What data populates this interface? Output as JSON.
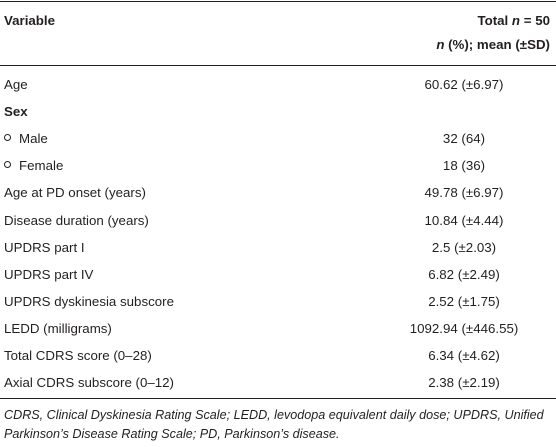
{
  "header": {
    "variable": "Variable",
    "total_line1": [
      "Total ",
      "n",
      " = 50"
    ],
    "total_line2": [
      "n",
      " (%); mean (±SD)"
    ]
  },
  "rows": [
    {
      "label": "Age",
      "value": "60.62 (±6.97)"
    },
    {
      "label": "Sex",
      "section": true
    },
    {
      "label": "Male",
      "value": "32 (64)",
      "sub": true
    },
    {
      "label": "Female",
      "value": "18 (36)",
      "sub": true
    },
    {
      "label": "Age at PD onset (years)",
      "value": "49.78 (±6.97)"
    },
    {
      "label": "Disease duration (years)",
      "value": "10.84 (±4.44)"
    },
    {
      "label": "UPDRS part I",
      "value": "2.5 (±2.03)"
    },
    {
      "label": "UPDRS part IV",
      "value": "6.82 (±2.49)"
    },
    {
      "label": "UPDRS dyskinesia subscore",
      "value": "2.52 (±1.75)"
    },
    {
      "label": "LEDD (milligrams)",
      "value": "1092.94 (±446.55)"
    },
    {
      "label": "Total CDRS score (0–28)",
      "value": "6.34 (±4.62)"
    },
    {
      "label": "Axial CDRS subscore (0–12)",
      "value": "2.38 (±2.19)"
    }
  ],
  "footnote": "CDRS, Clinical Dyskinesia Rating Scale; LEDD, levodopa equivalent daily dose; UPDRS, Unified Parkinson’s Disease Rating Scale; PD, Parkinson’s disease."
}
